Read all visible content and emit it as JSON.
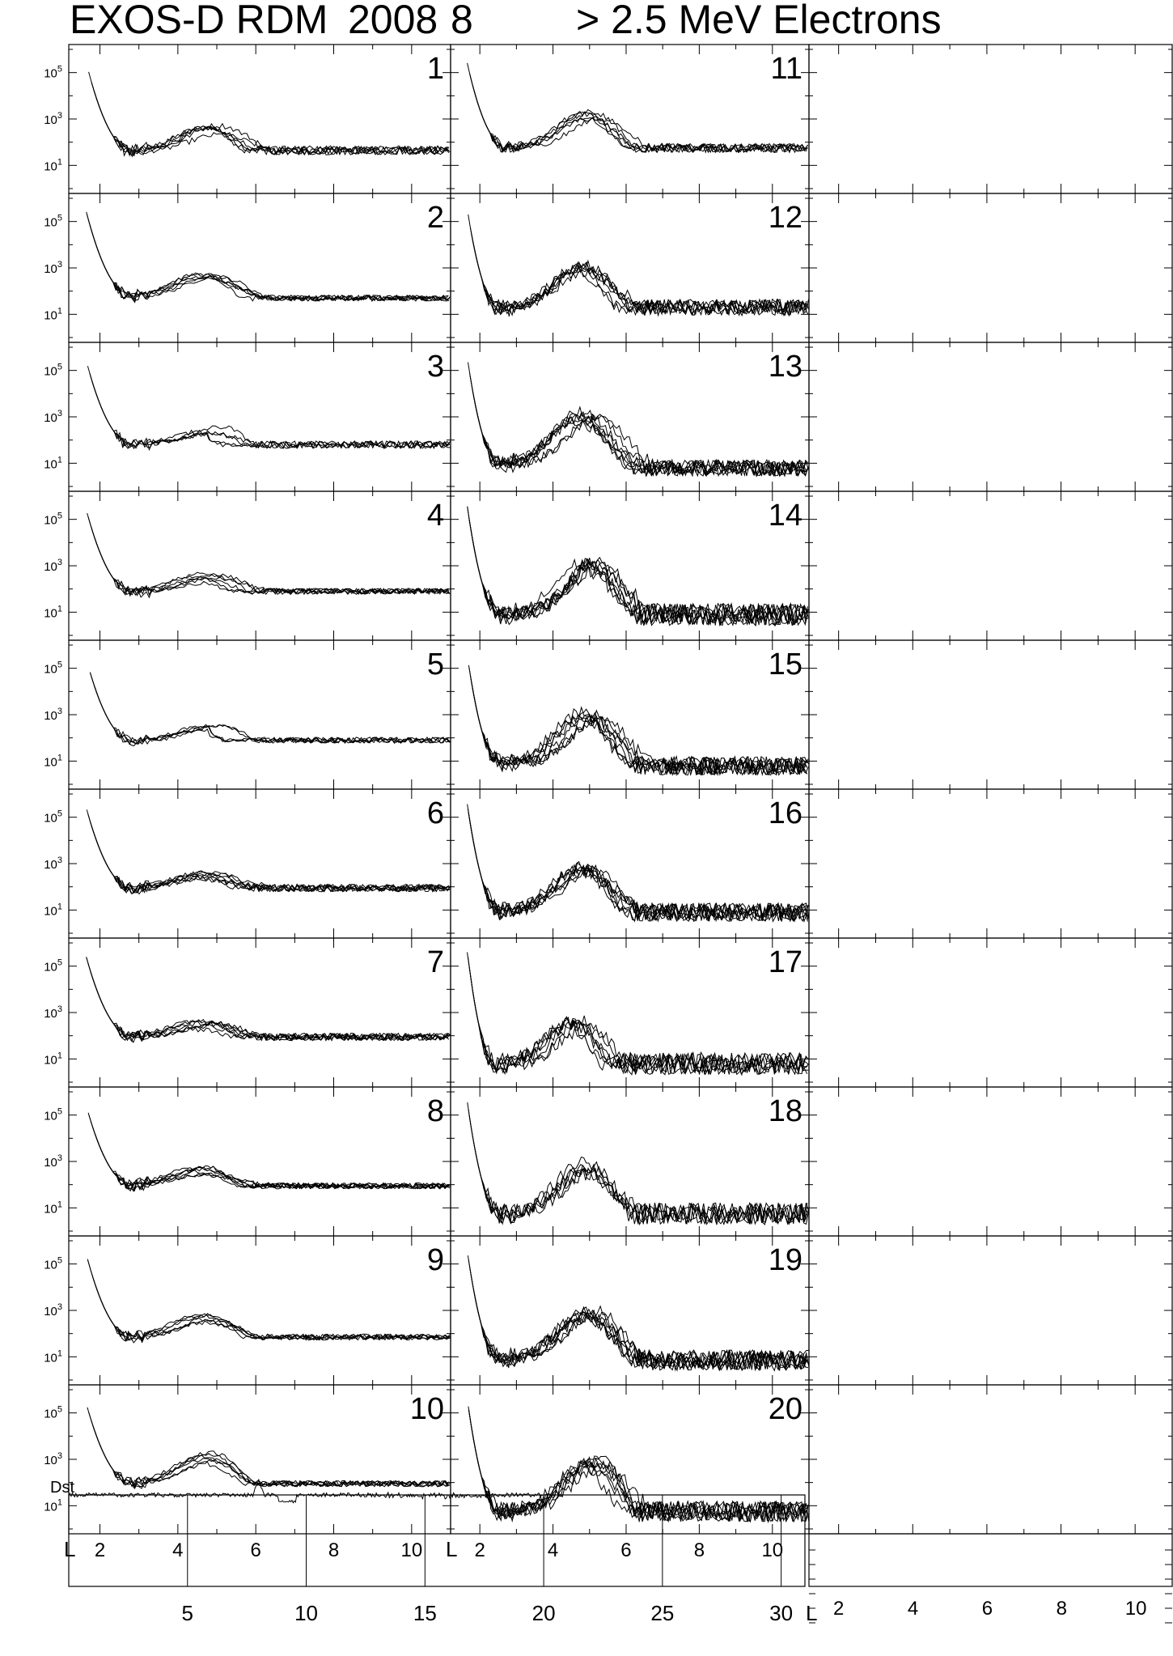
{
  "header": {
    "title": "EXOS-D RDM",
    "year": "2008",
    "month": "8",
    "species": "> 2.5  MeV Electrons"
  },
  "chart_data": {
    "type": "line",
    "y_scale": "log",
    "ylim_log10": [
      0,
      6
    ],
    "y_tick_labels": [
      {
        "base": "10",
        "exp": "5"
      },
      {
        "base": "10",
        "exp": "3"
      },
      {
        "base": "10",
        "exp": "1"
      }
    ],
    "xlabel": "L",
    "xlim": [
      1.2,
      11
    ],
    "x_tick_labels": [
      "2",
      "4",
      "6",
      "8",
      "10"
    ],
    "days_shown": [
      1,
      2,
      3,
      4,
      5,
      6,
      7,
      8,
      9,
      10,
      11,
      12,
      13,
      14,
      15,
      16,
      17,
      18,
      19,
      20
    ],
    "profile_params": {
      "1": {
        "dip_l": 2.9,
        "belt_l": 4.8,
        "belt_log": 2.55,
        "floor_log": 1.6,
        "end_log": 1.65,
        "steep_start": 5.2,
        "noise": 0.12,
        "curves": 6
      },
      "2": {
        "dip_l": 2.9,
        "belt_l": 4.7,
        "belt_log": 2.55,
        "floor_log": 1.75,
        "end_log": 1.7,
        "steep_start": 5.2,
        "noise": 0.08,
        "curves": 6
      },
      "3": {
        "dip_l": 2.9,
        "belt_l": 4.8,
        "belt_log": 2.45,
        "floor_log": 1.8,
        "end_log": 1.8,
        "steep_start": 4.6,
        "noise": 0.1,
        "curves": 5
      },
      "4": {
        "dip_l": 2.9,
        "belt_l": 4.7,
        "belt_log": 2.5,
        "floor_log": 1.85,
        "end_log": 1.9,
        "steep_start": 5.2,
        "noise": 0.08,
        "curves": 6
      },
      "5": {
        "dip_l": 2.9,
        "belt_l": 4.8,
        "belt_log": 2.5,
        "floor_log": 1.85,
        "end_log": 1.9,
        "steep_start": 4.6,
        "noise": 0.08,
        "curves": 5
      },
      "6": {
        "dip_l": 2.9,
        "belt_l": 4.7,
        "belt_log": 2.55,
        "floor_log": 1.9,
        "end_log": 1.95,
        "steep_start": 5.3,
        "noise": 0.1,
        "curves": 7
      },
      "7": {
        "dip_l": 2.9,
        "belt_l": 4.7,
        "belt_log": 2.45,
        "floor_log": 1.95,
        "end_log": 1.95,
        "steep_start": 5.3,
        "noise": 0.1,
        "curves": 7
      },
      "8": {
        "dip_l": 2.9,
        "belt_l": 4.7,
        "belt_log": 2.55,
        "floor_log": 1.95,
        "end_log": 1.95,
        "steep_start": 5.3,
        "noise": 0.08,
        "curves": 7
      },
      "9": {
        "dip_l": 2.9,
        "belt_l": 4.7,
        "belt_log": 2.6,
        "floor_log": 1.8,
        "end_log": 1.85,
        "steep_start": 5.3,
        "noise": 0.08,
        "curves": 6
      },
      "10": {
        "dip_l": 2.9,
        "belt_l": 4.8,
        "belt_log": 3.05,
        "floor_log": 1.95,
        "end_log": 1.95,
        "steep_start": 4.6,
        "noise": 0.08,
        "curves": 6
      },
      "11": {
        "dip_l": 2.8,
        "belt_l": 5.0,
        "belt_log": 3.1,
        "floor_log": 1.75,
        "end_log": 1.75,
        "steep_start": 5.2,
        "noise": 0.12,
        "curves": 6
      },
      "12": {
        "dip_l": 2.6,
        "belt_l": 4.8,
        "belt_log": 3.0,
        "floor_log": 1.25,
        "end_log": 1.3,
        "steep_start": 5.2,
        "noise": 0.22,
        "curves": 7
      },
      "13": {
        "dip_l": 2.6,
        "belt_l": 4.9,
        "belt_log": 3.0,
        "floor_log": 0.95,
        "end_log": 0.8,
        "steep_start": 5.2,
        "noise": 0.22,
        "curves": 8
      },
      "14": {
        "dip_l": 2.6,
        "belt_l": 5.0,
        "belt_log": 3.0,
        "floor_log": 0.9,
        "end_log": 0.9,
        "steep_start": 5.2,
        "noise": 0.3,
        "curves": 8
      },
      "15": {
        "dip_l": 2.6,
        "belt_l": 5.0,
        "belt_log": 2.9,
        "floor_log": 0.9,
        "end_log": 0.8,
        "steep_start": 5.2,
        "noise": 0.25,
        "curves": 8
      },
      "16": {
        "dip_l": 2.6,
        "belt_l": 4.9,
        "belt_log": 2.75,
        "floor_log": 0.95,
        "end_log": 0.9,
        "steep_start": 5.2,
        "noise": 0.25,
        "curves": 8
      },
      "17": {
        "dip_l": 2.5,
        "belt_l": 4.7,
        "belt_log": 2.35,
        "floor_log": 0.7,
        "end_log": 0.8,
        "steep_start": 4.3,
        "noise": 0.3,
        "curves": 7
      },
      "18": {
        "dip_l": 2.6,
        "belt_l": 4.8,
        "belt_log": 2.75,
        "floor_log": 0.75,
        "end_log": 0.75,
        "steep_start": 5.2,
        "noise": 0.3,
        "curves": 6
      },
      "19": {
        "dip_l": 2.6,
        "belt_l": 5.0,
        "belt_log": 2.95,
        "floor_log": 0.9,
        "end_log": 0.85,
        "steep_start": 5.2,
        "noise": 0.28,
        "curves": 8
      },
      "20": {
        "dip_l": 2.6,
        "belt_l": 5.0,
        "belt_log": 2.85,
        "floor_log": 0.75,
        "end_log": 0.75,
        "steep_start": 5.2,
        "noise": 0.28,
        "curves": 8
      }
    },
    "dst_panel": {
      "label": "Dst",
      "xlim": [
        0,
        31
      ],
      "x_tick_labels": [
        "5",
        "10",
        "15",
        "20",
        "25",
        "30"
      ],
      "x_ticks": [
        5,
        10,
        15,
        20,
        25,
        30
      ],
      "data_end_day": 20,
      "storm_peak_day": 8,
      "dip_day": 9
    },
    "right_column": {
      "xlabel": "L",
      "x_tick_labels": [
        "2",
        "4",
        "6",
        "8",
        "10"
      ]
    }
  }
}
